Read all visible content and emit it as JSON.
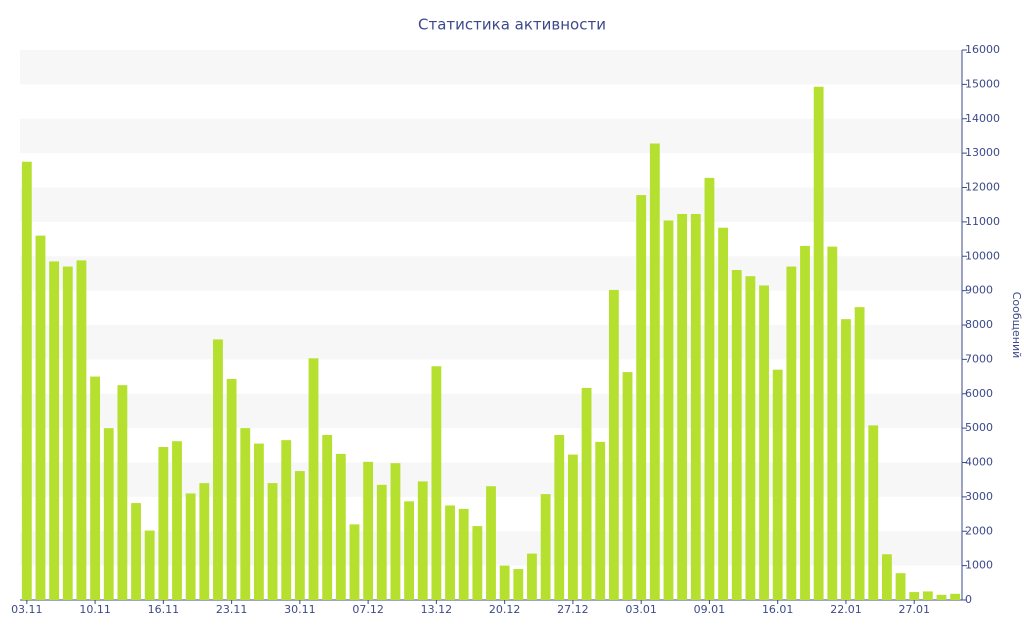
{
  "chart_data": {
    "type": "bar",
    "title": "Статистика активности",
    "y_label": "Сообщений",
    "categories": [
      "03.11",
      null,
      null,
      null,
      null,
      "10.11",
      null,
      null,
      null,
      null,
      "16.11",
      null,
      null,
      null,
      null,
      "23.11",
      null,
      null,
      null,
      null,
      "30.11",
      null,
      null,
      null,
      null,
      "07.12",
      null,
      null,
      null,
      null,
      "13.12",
      null,
      null,
      null,
      null,
      "20.12",
      null,
      null,
      null,
      null,
      "27.12",
      null,
      null,
      null,
      null,
      "03.01",
      null,
      null,
      null,
      null,
      "09.01",
      null,
      null,
      null,
      null,
      "16.01",
      null,
      null,
      null,
      null,
      "22.01",
      null,
      null,
      null,
      null,
      "27.01",
      null,
      null,
      null
    ],
    "values": [
      12750,
      10600,
      9850,
      9700,
      9880,
      6500,
      5000,
      6250,
      2820,
      2020,
      4450,
      4620,
      3100,
      3400,
      7580,
      6430,
      5000,
      4550,
      3400,
      4650,
      3750,
      7030,
      4800,
      4250,
      2200,
      4020,
      3350,
      3980,
      2870,
      3450,
      6800,
      2750,
      2650,
      2150,
      3310,
      1000,
      900,
      1350,
      3080,
      4800,
      4230,
      6170,
      4600,
      9020,
      6630,
      11780,
      13280,
      11040,
      11230,
      11230,
      12280,
      10830,
      9600,
      9420,
      9150,
      6700,
      9700,
      10300,
      14930,
      10280,
      8170,
      8520,
      5080,
      1330,
      780,
      230,
      250,
      150,
      180
    ],
    "color": "#b5e02f",
    "ylim": [
      0,
      16000
    ],
    "yticks": [
      0,
      1000,
      2000,
      3000,
      4000,
      5000,
      6000,
      7000,
      8000,
      9000,
      10000,
      11000,
      12000,
      13000,
      14000,
      15000,
      16000
    ],
    "grid": true,
    "y_axis_side": "right"
  }
}
